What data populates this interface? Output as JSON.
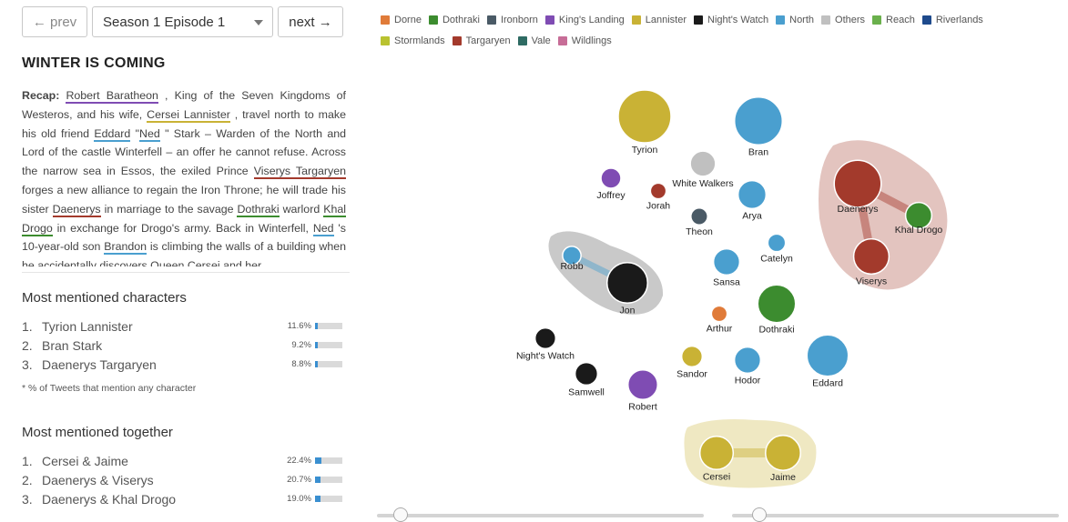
{
  "nav": {
    "prev_label": "← prev",
    "episode": "Season 1 Episode 1",
    "next_label": "next →"
  },
  "episode_title": "WINTER IS COMING",
  "recap": {
    "label": "Recap:",
    "segments": [
      {
        "text": "Robert Baratheon",
        "house": "King's Landing"
      },
      {
        "text": " , King of the Seven Kingdoms of Westeros, and his wife, "
      },
      {
        "text": "Cersei Lannister",
        "house": "Lannister"
      },
      {
        "text": " , travel north to make his old friend "
      },
      {
        "text": "Eddard",
        "house": "North"
      },
      {
        "text": " \""
      },
      {
        "text": "Ned",
        "house": "North"
      },
      {
        "text": " \" Stark – Warden of the North and Lord of the castle Winterfell – an offer he cannot refuse. Across the narrow sea in Essos, the exiled Prince "
      },
      {
        "text": "Viserys Targaryen",
        "house": "Targaryen"
      },
      {
        "text": " forges a new alliance to regain the Iron Throne; he will trade his sister "
      },
      {
        "text": "Daenerys",
        "house": "Targaryen"
      },
      {
        "text": " in marriage to the savage "
      },
      {
        "text": "Dothraki",
        "house": "Dothraki"
      },
      {
        "text": " warlord "
      },
      {
        "text": "Khal Drogo",
        "house": "Dothraki"
      },
      {
        "text": " in exchange for Drogo's army. Back in Winterfell, "
      },
      {
        "text": "Ned",
        "house": "North"
      },
      {
        "text": " 's 10-year-old son "
      },
      {
        "text": "Brandon",
        "house": "North"
      },
      {
        "text": " is climbing the walls of a building when he accidentally discovers Queen "
      },
      {
        "text": "Cersei",
        "house": "Lannister"
      },
      {
        "text": " and her"
      }
    ]
  },
  "most_mentioned_characters": {
    "title": "Most mentioned characters",
    "items": [
      {
        "rank": "1.",
        "name": "Tyrion Lannister",
        "pct_label": "11.6%",
        "pct": 11.6
      },
      {
        "rank": "2.",
        "name": "Bran Stark",
        "pct_label": "9.2%",
        "pct": 9.2
      },
      {
        "rank": "3.",
        "name": "Daenerys Targaryen",
        "pct_label": "8.8%",
        "pct": 8.8
      }
    ],
    "footnote": "* % of Tweets that mention any character"
  },
  "most_mentioned_together": {
    "title": "Most mentioned together",
    "items": [
      {
        "rank": "1.",
        "name": "Cersei & Jaime",
        "pct_label": "22.4%",
        "pct": 22.4
      },
      {
        "rank": "2.",
        "name": "Daenerys & Viserys",
        "pct_label": "20.7%",
        "pct": 20.7
      },
      {
        "rank": "3.",
        "name": "Daenerys & Khal Drogo",
        "pct_label": "19.0%",
        "pct": 19.0
      }
    ]
  },
  "colors": {
    "Dorne": "#e07b39",
    "Dothraki": "#3c8c2f",
    "Ironborn": "#4a5a66",
    "King's Landing": "#7f4cb3",
    "Lannister": "#c9b235",
    "Night's Watch": "#1a1a1a",
    "North": "#4a9fcf",
    "Others": "#c0c0c0",
    "Reach": "#6ab04c",
    "Riverlands": "#1e4a8c",
    "Stormlands": "#b9c230",
    "Targaryen": "#a33a2c",
    "Vale": "#2e6b63",
    "Wildlings": "#c76d97"
  },
  "chart_data": {
    "type": "network",
    "legend": [
      "Dorne",
      "Dothraki",
      "Ironborn",
      "King's Landing",
      "Lannister",
      "Night's Watch",
      "North",
      "Others",
      "Reach",
      "Riverlands",
      "Stormlands",
      "Targaryen",
      "Vale",
      "Wildlings"
    ],
    "nodes": [
      {
        "name": "Tyrion",
        "house": "Lannister",
        "value": 11.6
      },
      {
        "name": "Bran",
        "house": "North",
        "value": 9.2
      },
      {
        "name": "Daenerys",
        "house": "Targaryen",
        "value": 8.8
      },
      {
        "name": "Jon",
        "house": "Night's Watch",
        "value": 6.2
      },
      {
        "name": "Eddard",
        "house": "North",
        "value": 6.5
      },
      {
        "name": "Dothraki",
        "house": "Dothraki",
        "value": 5.2
      },
      {
        "name": "Viserys",
        "house": "Targaryen",
        "value": 4.4
      },
      {
        "name": "Cersei",
        "house": "Lannister",
        "value": 3.8
      },
      {
        "name": "Jaime",
        "house": "Lannister",
        "value": 4.3
      },
      {
        "name": "Robert",
        "house": "King's Landing",
        "value": 2.8
      },
      {
        "name": "Arya",
        "house": "North",
        "value": 2.4
      },
      {
        "name": "Sansa",
        "house": "North",
        "value": 2.0
      },
      {
        "name": "Hodor",
        "house": "North",
        "value": 2.0
      },
      {
        "name": "Khal Drogo",
        "house": "Dothraki",
        "value": 2.0
      },
      {
        "name": "White Walkers",
        "house": "Others",
        "value": 1.8
      },
      {
        "name": "Samwell",
        "house": "Night's Watch",
        "value": 1.3
      },
      {
        "name": "Night's Watch",
        "house": "Night's Watch",
        "value": 1.0
      },
      {
        "name": "Sandor",
        "house": "Lannister",
        "value": 1.0
      },
      {
        "name": "Joffrey",
        "house": "King's Landing",
        "value": 0.9
      },
      {
        "name": "Catelyn",
        "house": "North",
        "value": 0.6
      },
      {
        "name": "Robb",
        "house": "North",
        "value": 0.7
      },
      {
        "name": "Theon",
        "house": "Ironborn",
        "value": 0.5
      },
      {
        "name": "Jorah",
        "house": "Targaryen",
        "value": 0.4
      },
      {
        "name": "Arthur",
        "house": "Dorne",
        "value": 0.4
      }
    ],
    "links": [
      {
        "source": "Cersei",
        "target": "Jaime",
        "value": 22.4
      },
      {
        "source": "Daenerys",
        "target": "Viserys",
        "value": 20.7
      },
      {
        "source": "Daenerys",
        "target": "Khal Drogo",
        "value": 19.0
      },
      {
        "source": "Robb",
        "target": "Jon",
        "value": 15.0
      }
    ],
    "groups": [
      {
        "members": [
          "Daenerys",
          "Khal Drogo",
          "Viserys"
        ],
        "color": "Targaryen"
      },
      {
        "members": [
          "Robb",
          "Jon"
        ],
        "color": "Others"
      },
      {
        "members": [
          "Cersei",
          "Jaime"
        ],
        "color": "Lannister"
      }
    ]
  },
  "sliders": [
    {
      "name": "slider-left",
      "value": 0.05
    },
    {
      "name": "slider-right",
      "value": 0.06
    }
  ]
}
